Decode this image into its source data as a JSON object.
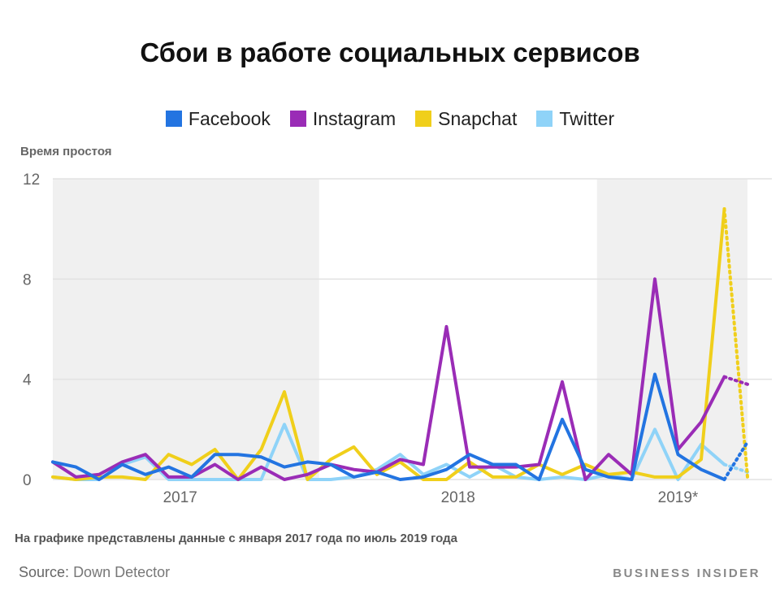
{
  "chart_data": {
    "type": "line",
    "title": "Сбои в работе социальных сервисов",
    "ylabel": "Время простоя",
    "ylim": [
      0,
      12
    ],
    "yticks": [
      0,
      4,
      8,
      12
    ],
    "year_labels": [
      "2017",
      "2018",
      "2019*"
    ],
    "x_range": [
      "2017-01",
      "2019-07"
    ],
    "note": "На графике представлены данные с января 2017 года по июль 2019 года",
    "series": [
      {
        "name": "Facebook",
        "color": "#2374e1",
        "values": [
          0.7,
          0.5,
          0.0,
          0.6,
          0.2,
          0.5,
          0.1,
          1.0,
          1.0,
          0.9,
          0.5,
          0.7,
          0.6,
          0.1,
          0.3,
          0.0,
          0.1,
          0.4,
          1.0,
          0.6,
          0.6,
          0.0,
          2.4,
          0.4,
          0.1,
          0.0,
          4.2,
          1.0,
          0.4,
          0.0,
          1.5
        ],
        "dashed_from": 29
      },
      {
        "name": "Instagram",
        "color": "#9a2cb6",
        "values": [
          0.7,
          0.1,
          0.2,
          0.7,
          1.0,
          0.1,
          0.1,
          0.6,
          0.0,
          0.5,
          0.0,
          0.2,
          0.6,
          0.4,
          0.3,
          0.8,
          0.6,
          6.1,
          0.5,
          0.5,
          0.5,
          0.6,
          3.9,
          0.0,
          1.0,
          0.2,
          8.0,
          1.2,
          2.3,
          4.1,
          3.8
        ],
        "dashed_from": 29
      },
      {
        "name": "Snapchat",
        "color": "#f0cf1b",
        "values": [
          0.1,
          0.0,
          0.1,
          0.1,
          0.0,
          1.0,
          0.6,
          1.2,
          0.0,
          1.2,
          3.5,
          0.0,
          0.8,
          1.3,
          0.2,
          0.7,
          0.0,
          0.0,
          0.7,
          0.1,
          0.1,
          0.6,
          0.2,
          0.6,
          0.2,
          0.3,
          0.1,
          0.1,
          0.8,
          10.8,
          0.1
        ],
        "dashed_from": 29
      },
      {
        "name": "Twitter",
        "color": "#8fd3f8",
        "values": [
          0.1,
          0.0,
          0.0,
          0.6,
          0.9,
          0.0,
          0.0,
          0.0,
          0.0,
          0.0,
          2.2,
          0.0,
          0.0,
          0.1,
          0.4,
          1.0,
          0.2,
          0.6,
          0.1,
          0.6,
          0.1,
          0.0,
          0.1,
          0.0,
          0.2,
          0.0,
          2.0,
          0.0,
          1.4,
          0.6,
          0.3
        ],
        "dashed_from": 29
      }
    ]
  },
  "footer": {
    "source_label": "Source:",
    "source_value": "Down Detector",
    "brand": "BUSINESS INSIDER"
  },
  "colors": {
    "band": "#f0f0f0",
    "grid": "#e2e2e2"
  }
}
